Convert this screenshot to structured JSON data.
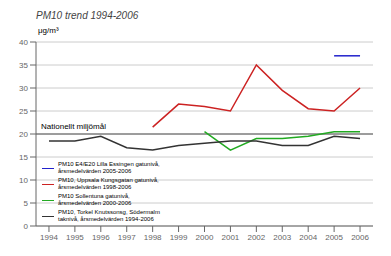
{
  "chart_data": {
    "type": "line",
    "title": "PM10 trend 1994-2006",
    "ylabel": "μg/m³",
    "x": [
      1994,
      1995,
      1996,
      1997,
      1998,
      1999,
      2000,
      2001,
      2002,
      2003,
      2004,
      2005,
      2006
    ],
    "xlim": [
      1993.5,
      2006.5
    ],
    "xticks": [
      1994,
      1995,
      1996,
      1997,
      1998,
      1999,
      2000,
      2001,
      2002,
      2003,
      2004,
      2005,
      2006
    ],
    "ylim": [
      0,
      40
    ],
    "yticks": [
      0,
      5,
      10,
      15,
      20,
      25,
      30,
      35,
      40
    ],
    "grid": "y",
    "legend": "lower left",
    "annotations": [
      {
        "text": "Nationellt miljömål",
        "y": 20
      }
    ],
    "series": [
      {
        "name": "PM10 E4/E20 Lilla Essingen gatunivå,\nårsmedelvärden 2005-2006",
        "color": "#2222cc",
        "values": [
          null,
          null,
          null,
          null,
          null,
          null,
          null,
          null,
          null,
          null,
          null,
          37,
          37
        ]
      },
      {
        "name": "PM10, Uppsala Kungsgatan gatunivå,\nårsmedelvärden 1998-2006",
        "color": "#cc2222",
        "values": [
          null,
          null,
          null,
          null,
          21.5,
          26.5,
          26.0,
          25.0,
          35.0,
          29.5,
          25.5,
          25.0,
          30.0
        ]
      },
      {
        "name": "PM10 Sollentuna gatunivå,\nårsmedelvärden 2000-2006",
        "color": "#22aa22",
        "values": [
          null,
          null,
          null,
          null,
          null,
          null,
          20.5,
          16.5,
          19.0,
          19.0,
          19.5,
          20.5,
          20.5
        ]
      },
      {
        "name": "PM10, Torkel Knutssonsg, Södermalm\ntaknivå, årsmedelvärden 1994-2006",
        "color": "#333333",
        "values": [
          18.5,
          18.5,
          19.5,
          17.0,
          16.5,
          17.5,
          18.0,
          18.5,
          18.5,
          17.5,
          17.5,
          19.5,
          19.0
        ]
      }
    ]
  }
}
